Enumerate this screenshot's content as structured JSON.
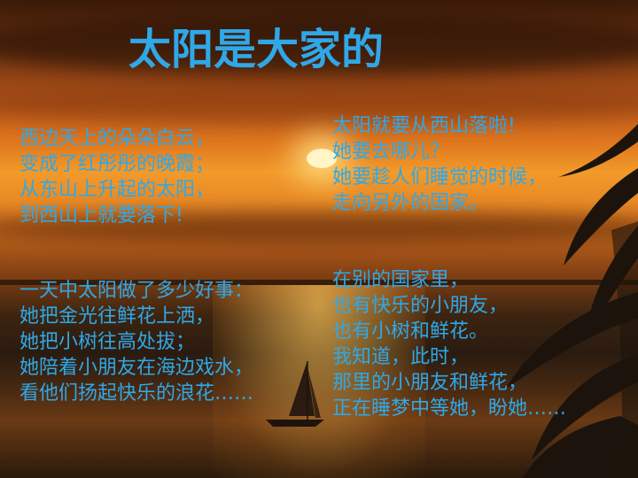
{
  "slide": {
    "title": "太阳是大家的",
    "colors": {
      "text": "#2fa8e8"
    },
    "left_stanzas": [
      {
        "lines": [
          "西边天上的朵朵白云，",
          "变成了红彤彤的晚霞；",
          "从东山上升起的太阳，",
          "到西山上就要落下!"
        ]
      },
      {
        "lines": [
          "一天中太阳做了多少好事：",
          "她把金光往鲜花上洒，",
          "她把小树往高处拔；",
          "她陪着小朋友在海边戏水，",
          "看他们扬起快乐的浪花……"
        ]
      }
    ],
    "right_stanzas": [
      {
        "lines": [
          "太阳就要从西山落啦!",
          "她要去哪儿？",
          "她要趁人们睡觉的时候，",
          "走向另外的国家。"
        ]
      },
      {
        "lines": [
          "在别的国家里，",
          "也有快乐的小朋友，",
          "也有小树和鲜花。",
          "我知道，此时，",
          "那里的小朋友和鲜花，",
          "正在睡梦中等她，盼她……"
        ]
      }
    ]
  }
}
